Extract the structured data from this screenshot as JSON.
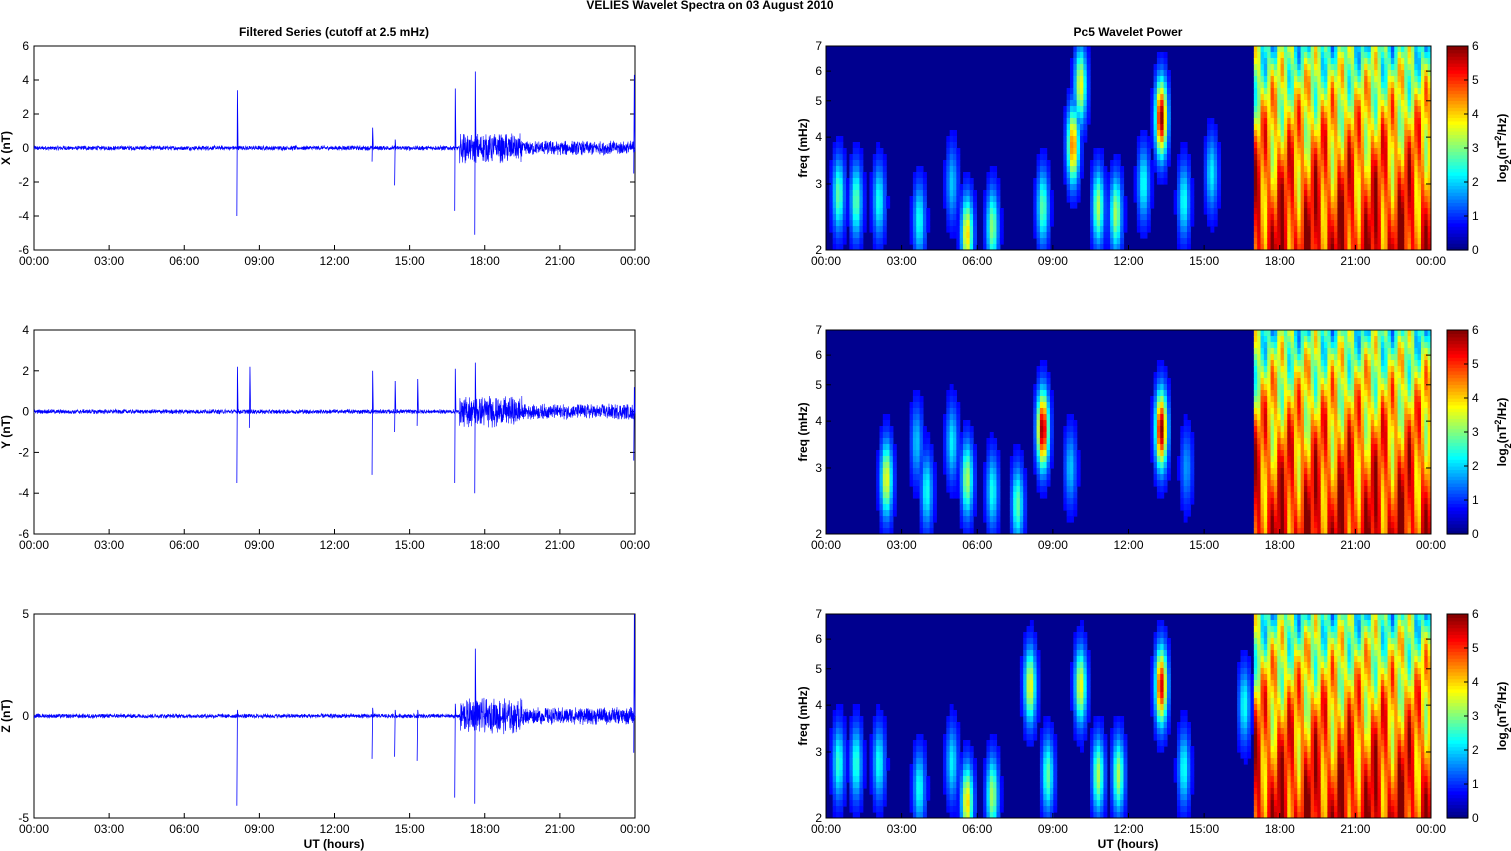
{
  "figure": {
    "title": "VELIES Wavelet Spectra on 03 August    2010",
    "left_title": "Filtered Series (cutoff at 2.5 mHz)",
    "right_title": "Pc5 Wavelet Power",
    "xlabel": "UT (hours)",
    "time_ticks": [
      "00:00",
      "03:00",
      "06:00",
      "09:00",
      "12:00",
      "15:00",
      "18:00",
      "21:00",
      "00:00"
    ],
    "freq_label": "freq (mHz)",
    "colorbar_label_main": "log",
    "colorbar_label_sub": "2",
    "colorbar_label_mid": "(nT",
    "colorbar_label_sup": "2",
    "colorbar_label_tail": "/Hz)"
  },
  "colors": {
    "trace": "#0000ff",
    "background": "#ffffff"
  },
  "chart_data": [
    {
      "type": "line",
      "name": "X filtered series",
      "ylabel": "X (nT)",
      "ylim": [
        -6,
        6
      ],
      "yticks": [
        -6,
        -4,
        -2,
        0,
        2,
        4,
        6
      ],
      "xlim_hours": [
        0,
        24
      ],
      "noise_segments": [
        {
          "from_h": 0,
          "to_h": 17,
          "amplitude_nt": 0.15
        },
        {
          "from_h": 17,
          "to_h": 19.5,
          "amplitude_nt": 0.9
        },
        {
          "from_h": 19.5,
          "to_h": 24,
          "amplitude_nt": 0.45
        }
      ],
      "spikes": [
        {
          "time_h": 8.1,
          "max": 3.4,
          "min": -4.0
        },
        {
          "time_h": 13.5,
          "max": 1.2,
          "min": -0.8
        },
        {
          "time_h": 14.4,
          "max": 0.5,
          "min": -2.2
        },
        {
          "time_h": 16.8,
          "max": 3.5,
          "min": -3.7
        },
        {
          "time_h": 17.6,
          "max": 4.5,
          "min": -5.1
        },
        {
          "time_h": 23.95,
          "max": 4.3,
          "min": -1.5
        }
      ]
    },
    {
      "type": "line",
      "name": "Y filtered series",
      "ylabel": "Y (nT)",
      "ylim": [
        -6,
        4
      ],
      "yticks": [
        -6,
        -4,
        -2,
        0,
        2,
        4
      ],
      "xlim_hours": [
        0,
        24
      ],
      "noise_segments": [
        {
          "from_h": 0,
          "to_h": 17,
          "amplitude_nt": 0.12
        },
        {
          "from_h": 17,
          "to_h": 19.5,
          "amplitude_nt": 0.8
        },
        {
          "from_h": 19.5,
          "to_h": 24,
          "amplitude_nt": 0.4
        }
      ],
      "spikes": [
        {
          "time_h": 8.1,
          "max": 2.2,
          "min": -3.5
        },
        {
          "time_h": 8.6,
          "max": 2.2,
          "min": -0.8
        },
        {
          "time_h": 13.5,
          "max": 2.0,
          "min": -3.1
        },
        {
          "time_h": 14.4,
          "max": 1.5,
          "min": -1.0
        },
        {
          "time_h": 15.3,
          "max": 1.6,
          "min": -0.7
        },
        {
          "time_h": 16.8,
          "max": 2.1,
          "min": -3.5
        },
        {
          "time_h": 17.6,
          "max": 2.4,
          "min": -4.0
        },
        {
          "time_h": 23.95,
          "max": 1.2,
          "min": -2.4
        }
      ]
    },
    {
      "type": "line",
      "name": "Z filtered series",
      "ylabel": "Z (nT)",
      "ylim": [
        -5,
        5
      ],
      "yticks": [
        -5,
        0,
        5
      ],
      "xlim_hours": [
        0,
        24
      ],
      "noise_segments": [
        {
          "from_h": 0,
          "to_h": 17,
          "amplitude_nt": 0.12
        },
        {
          "from_h": 17,
          "to_h": 19.5,
          "amplitude_nt": 0.9
        },
        {
          "from_h": 19.5,
          "to_h": 24,
          "amplitude_nt": 0.45
        }
      ],
      "spikes": [
        {
          "time_h": 8.1,
          "max": 0.3,
          "min": -4.4
        },
        {
          "time_h": 13.5,
          "max": 0.4,
          "min": -2.1
        },
        {
          "time_h": 14.4,
          "max": 0.3,
          "min": -2.0
        },
        {
          "time_h": 15.3,
          "max": 0.3,
          "min": -2.2
        },
        {
          "time_h": 16.8,
          "max": 0.6,
          "min": -4.0
        },
        {
          "time_h": 17.6,
          "max": 3.3,
          "min": -4.3
        },
        {
          "time_h": 23.95,
          "max": 5.0,
          "min": -1.8
        }
      ]
    },
    {
      "type": "heatmap",
      "name": "Pc5 wavelet power (X)",
      "ylabel": "freq (mHz)",
      "yscale": "log",
      "ylim": [
        2,
        7
      ],
      "yticks": [
        2,
        3,
        4,
        5,
        6,
        7
      ],
      "xlim_hours": [
        0,
        24
      ],
      "colormap": "jet",
      "clim": [
        0,
        6
      ],
      "cticks": [
        0,
        1,
        2,
        3,
        4,
        5,
        6
      ],
      "storm_band_hours": [
        17,
        24
      ],
      "events": [
        {
          "time_h": 0.5,
          "freq_mhz": 2.8,
          "power": 2.5
        },
        {
          "time_h": 1.2,
          "freq_mhz": 2.7,
          "power": 2.5
        },
        {
          "time_h": 2.1,
          "freq_mhz": 2.7,
          "power": 2.0
        },
        {
          "time_h": 3.7,
          "freq_mhz": 2.4,
          "power": 2.0
        },
        {
          "time_h": 5.0,
          "freq_mhz": 3.0,
          "power": 1.5
        },
        {
          "time_h": 5.6,
          "freq_mhz": 2.2,
          "power": 3.8
        },
        {
          "time_h": 6.6,
          "freq_mhz": 2.3,
          "power": 2.8
        },
        {
          "time_h": 8.6,
          "freq_mhz": 2.6,
          "power": 2.5
        },
        {
          "time_h": 9.8,
          "freq_mhz": 3.8,
          "power": 4.5
        },
        {
          "time_h": 10.1,
          "freq_mhz": 5.5,
          "power": 3.5
        },
        {
          "time_h": 10.8,
          "freq_mhz": 2.6,
          "power": 3.0
        },
        {
          "time_h": 11.5,
          "freq_mhz": 2.5,
          "power": 3.0
        },
        {
          "time_h": 12.6,
          "freq_mhz": 3.0,
          "power": 2.0
        },
        {
          "time_h": 13.3,
          "freq_mhz": 4.5,
          "power": 6.0
        },
        {
          "time_h": 14.2,
          "freq_mhz": 2.7,
          "power": 2.0
        },
        {
          "time_h": 15.3,
          "freq_mhz": 3.2,
          "power": 1.8
        }
      ]
    },
    {
      "type": "heatmap",
      "name": "Pc5 wavelet power (Y)",
      "ylabel": "freq (mHz)",
      "yscale": "log",
      "ylim": [
        2,
        7
      ],
      "yticks": [
        2,
        3,
        4,
        5,
        6,
        7
      ],
      "xlim_hours": [
        0,
        24
      ],
      "colormap": "jet",
      "clim": [
        0,
        6
      ],
      "cticks": [
        0,
        1,
        2,
        3,
        4,
        5,
        6
      ],
      "storm_band_hours": [
        17,
        24
      ],
      "events": [
        {
          "time_h": 2.4,
          "freq_mhz": 2.8,
          "power": 3.5
        },
        {
          "time_h": 3.6,
          "freq_mhz": 3.5,
          "power": 1.5
        },
        {
          "time_h": 4.0,
          "freq_mhz": 2.6,
          "power": 2.0
        },
        {
          "time_h": 5.0,
          "freq_mhz": 3.5,
          "power": 1.8
        },
        {
          "time_h": 5.6,
          "freq_mhz": 2.8,
          "power": 3.0
        },
        {
          "time_h": 6.6,
          "freq_mhz": 2.6,
          "power": 2.0
        },
        {
          "time_h": 7.6,
          "freq_mhz": 2.4,
          "power": 2.5
        },
        {
          "time_h": 8.6,
          "freq_mhz": 3.8,
          "power": 6.0
        },
        {
          "time_h": 9.7,
          "freq_mhz": 3.0,
          "power": 1.5
        },
        {
          "time_h": 13.3,
          "freq_mhz": 3.8,
          "power": 6.0
        },
        {
          "time_h": 14.3,
          "freq_mhz": 3.0,
          "power": 1.2
        }
      ]
    },
    {
      "type": "heatmap",
      "name": "Pc5 wavelet power (Z)",
      "ylabel": "freq (mHz)",
      "yscale": "log",
      "ylim": [
        2,
        7
      ],
      "yticks": [
        2,
        3,
        4,
        5,
        6,
        7
      ],
      "xlim_hours": [
        0,
        24
      ],
      "colormap": "jet",
      "clim": [
        0,
        6
      ],
      "cticks": [
        0,
        1,
        2,
        3,
        4,
        5,
        6
      ],
      "storm_band_hours": [
        17,
        24
      ],
      "events": [
        {
          "time_h": 0.5,
          "freq_mhz": 2.8,
          "power": 2.2
        },
        {
          "time_h": 1.2,
          "freq_mhz": 2.8,
          "power": 2.2
        },
        {
          "time_h": 2.1,
          "freq_mhz": 2.8,
          "power": 2.0
        },
        {
          "time_h": 3.7,
          "freq_mhz": 2.4,
          "power": 2.0
        },
        {
          "time_h": 5.0,
          "freq_mhz": 2.8,
          "power": 1.8
        },
        {
          "time_h": 5.6,
          "freq_mhz": 2.2,
          "power": 3.8
        },
        {
          "time_h": 6.6,
          "freq_mhz": 2.3,
          "power": 3.0
        },
        {
          "time_h": 8.1,
          "freq_mhz": 4.5,
          "power": 3.5
        },
        {
          "time_h": 8.8,
          "freq_mhz": 2.6,
          "power": 2.5
        },
        {
          "time_h": 10.1,
          "freq_mhz": 4.5,
          "power": 3.5
        },
        {
          "time_h": 10.8,
          "freq_mhz": 2.6,
          "power": 3.0
        },
        {
          "time_h": 11.6,
          "freq_mhz": 2.6,
          "power": 3.0
        },
        {
          "time_h": 13.3,
          "freq_mhz": 4.5,
          "power": 5.5
        },
        {
          "time_h": 14.2,
          "freq_mhz": 2.7,
          "power": 2.0
        },
        {
          "time_h": 16.6,
          "freq_mhz": 4.0,
          "power": 2.0
        }
      ]
    }
  ]
}
